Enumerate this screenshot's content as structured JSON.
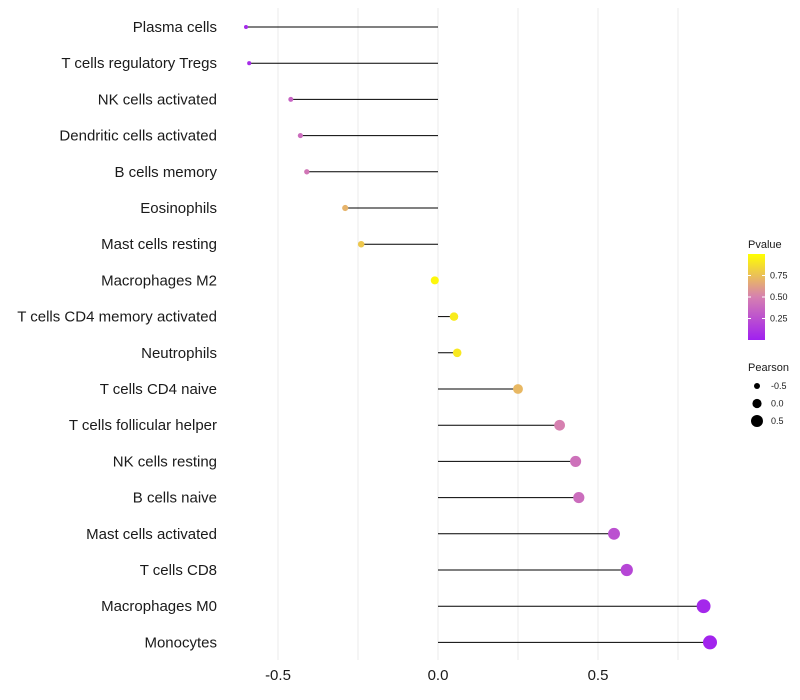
{
  "chart_data": {
    "type": "lollipop",
    "title": "",
    "xlabel": "",
    "ylabel": "",
    "xlim": [
      -0.68,
      0.88
    ],
    "x_ticks": [
      {
        "value": -0.5,
        "label": "-0.5"
      },
      {
        "value": 0.0,
        "label": "0.0"
      },
      {
        "value": 0.5,
        "label": "0.5"
      }
    ],
    "grid": true,
    "legend_position": "right",
    "rows": [
      {
        "category": "Plasma cells",
        "pearson": -0.6,
        "pvalue": 0.05
      },
      {
        "category": "T cells regulatory  Tregs",
        "pearson": -0.59,
        "pvalue": 0.06
      },
      {
        "category": "NK cells activated",
        "pearson": -0.46,
        "pvalue": 0.35
      },
      {
        "category": "Dendritic cells activated",
        "pearson": -0.43,
        "pvalue": 0.4
      },
      {
        "category": "B cells memory",
        "pearson": -0.41,
        "pvalue": 0.45
      },
      {
        "category": "Eosinophils",
        "pearson": -0.29,
        "pvalue": 0.7
      },
      {
        "category": "Mast cells resting",
        "pearson": -0.24,
        "pvalue": 0.78
      },
      {
        "category": "Macrophages M2",
        "pearson": -0.01,
        "pvalue": 0.97
      },
      {
        "category": "T cells CD4 memory activated",
        "pearson": 0.05,
        "pvalue": 0.92
      },
      {
        "category": "Neutrophils",
        "pearson": 0.06,
        "pvalue": 0.91
      },
      {
        "category": "T cells CD4 naive",
        "pearson": 0.25,
        "pvalue": 0.72
      },
      {
        "category": "T cells follicular helper",
        "pearson": 0.38,
        "pvalue": 0.5
      },
      {
        "category": "NK cells resting",
        "pearson": 0.43,
        "pvalue": 0.42
      },
      {
        "category": "B cells naive",
        "pearson": 0.44,
        "pvalue": 0.4
      },
      {
        "category": "Mast cells activated",
        "pearson": 0.55,
        "pvalue": 0.25
      },
      {
        "category": "T cells CD8",
        "pearson": 0.59,
        "pvalue": 0.2
      },
      {
        "category": "Macrophages M0",
        "pearson": 0.83,
        "pvalue": 0.04
      },
      {
        "category": "Monocytes",
        "pearson": 0.85,
        "pvalue": 0.02
      }
    ],
    "legend": {
      "color_title": "Pvalue",
      "color_ticks": [
        {
          "value": 0.75,
          "label": "0.75"
        },
        {
          "value": 0.5,
          "label": "0.50"
        },
        {
          "value": 0.25,
          "label": "0.25"
        }
      ],
      "color_range": [
        0.0,
        1.0
      ],
      "color_low": "#a020f0",
      "color_mid": "#d680b0",
      "color_high": "#ffff00",
      "size_title": "Pearson",
      "size_entries": [
        {
          "value": -0.5,
          "label": "-0.5"
        },
        {
          "value": 0.0,
          "label": "0.0"
        },
        {
          "value": 0.5,
          "label": "0.5"
        }
      ]
    }
  }
}
